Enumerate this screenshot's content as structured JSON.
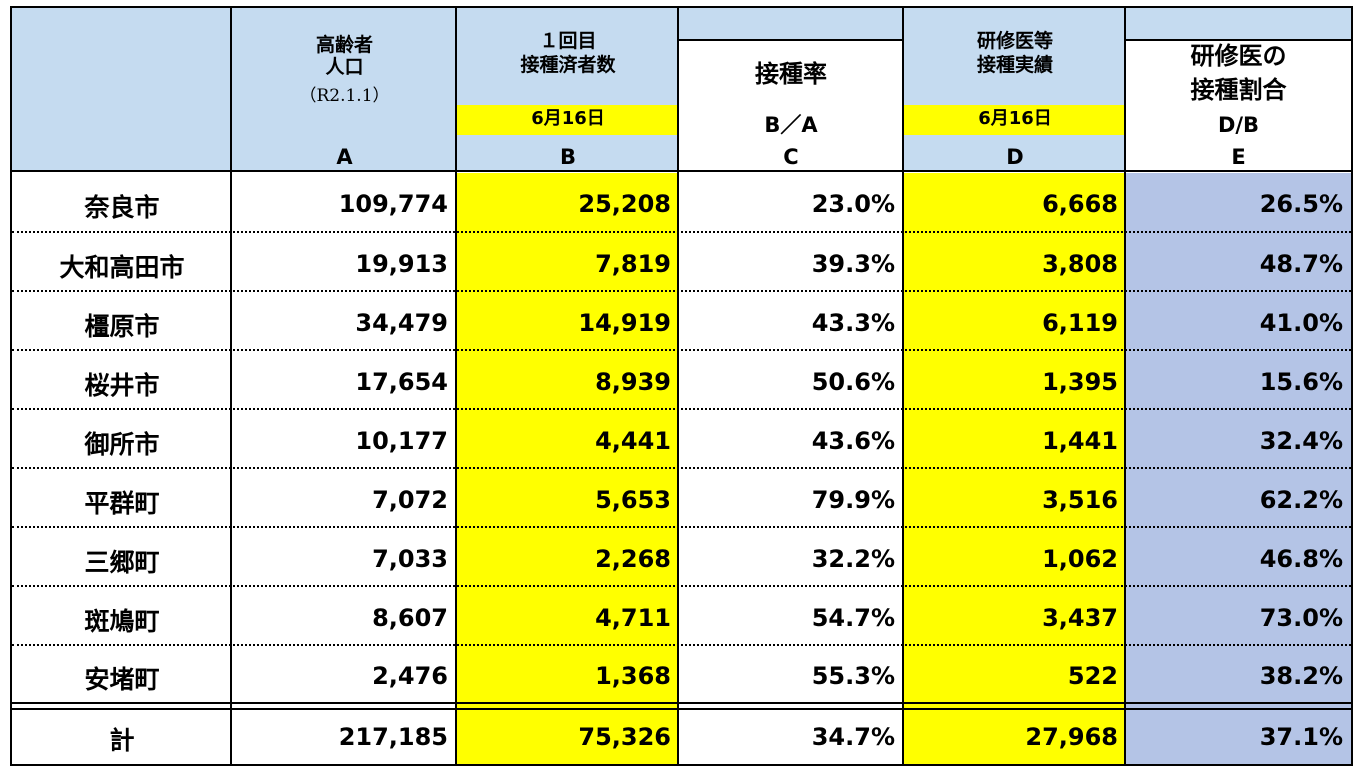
{
  "header": {
    "col_a": {
      "line1": "高齢者",
      "line2": "人口",
      "line3": "（R2.1.1）",
      "letter": "A"
    },
    "col_b": {
      "line1": "１回目",
      "line2": "接種済者数",
      "date": "6月16日",
      "letter": "B"
    },
    "col_c": {
      "label": "接種率",
      "formula": "B／A",
      "letter": "C"
    },
    "col_d": {
      "line1": "研修医等",
      "line2": "接種実績",
      "date": "6月16日",
      "letter": "D"
    },
    "col_e": {
      "line1": "研修医の",
      "line2": "接種割合",
      "formula": "D/B",
      "letter": "E"
    }
  },
  "rows": [
    {
      "name": "奈良市",
      "a": "109,774",
      "b": "25,208",
      "c": "23.0%",
      "d": "6,668",
      "e": "26.5%"
    },
    {
      "name": "大和高田市",
      "a": "19,913",
      "b": "7,819",
      "c": "39.3%",
      "d": "3,808",
      "e": "48.7%"
    },
    {
      "name": "橿原市",
      "a": "34,479",
      "b": "14,919",
      "c": "43.3%",
      "d": "6,119",
      "e": "41.0%"
    },
    {
      "name": "桜井市",
      "a": "17,654",
      "b": "8,939",
      "c": "50.6%",
      "d": "1,395",
      "e": "15.6%"
    },
    {
      "name": "御所市",
      "a": "10,177",
      "b": "4,441",
      "c": "43.6%",
      "d": "1,441",
      "e": "32.4%"
    },
    {
      "name": "平群町",
      "a": "7,072",
      "b": "5,653",
      "c": "79.9%",
      "d": "3,516",
      "e": "62.2%"
    },
    {
      "name": "三郷町",
      "a": "7,033",
      "b": "2,268",
      "c": "32.2%",
      "d": "1,062",
      "e": "46.8%"
    },
    {
      "name": "斑鳩町",
      "a": "8,607",
      "b": "4,711",
      "c": "54.7%",
      "d": "3,437",
      "e": "73.0%"
    },
    {
      "name": "安堵町",
      "a": "2,476",
      "b": "1,368",
      "c": "55.3%",
      "d": "522",
      "e": "38.2%"
    }
  ],
  "total": {
    "name": "計",
    "a": "217,185",
    "b": "75,326",
    "c": "34.7%",
    "d": "27,968",
    "e": "37.1%"
  },
  "colors": {
    "header": "#c5dbf0",
    "highlight": "#ffff00",
    "ratio_column": "#b4c4e6"
  }
}
